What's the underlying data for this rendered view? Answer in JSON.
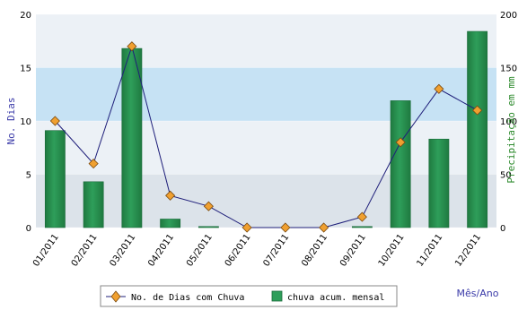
{
  "chart_data": {
    "type": "bar",
    "categories": [
      "01/2011",
      "02/2011",
      "03/2011",
      "04/2011",
      "05/2011",
      "06/2011",
      "07/2011",
      "08/2011",
      "09/2011",
      "10/2011",
      "11/2011",
      "12/2011"
    ],
    "series": [
      {
        "name": "chuva acum. mensal",
        "type": "bar",
        "axis": "right",
        "color": "#2e9e5a",
        "values": [
          91,
          43,
          168,
          8,
          1,
          0,
          0,
          0,
          1,
          119,
          83,
          184
        ]
      },
      {
        "name": "No. de Dias com Chuva",
        "type": "line",
        "axis": "left",
        "color": "#1f1f7a",
        "marker_color": "#f0a030",
        "values": [
          10,
          6,
          17,
          3,
          2,
          0,
          0,
          0,
          1,
          8,
          13,
          11
        ]
      }
    ],
    "ylabel_left": "No. Dias",
    "ylabel_right": "Precipitação em mm",
    "xlabel": "Mês/Ano",
    "ylim_left": [
      0,
      20
    ],
    "ylim_right": [
      0,
      200
    ],
    "yticks_left": [
      "0",
      "5",
      "10",
      "15",
      "20"
    ],
    "yticks_right": [
      "0",
      "50",
      "100",
      "150",
      "200"
    ],
    "background_bands": [
      "#dce3ea",
      "#ecf1f6",
      "#c6e2f4",
      "#ecf1f6"
    ],
    "legend_placement": "bottom"
  }
}
